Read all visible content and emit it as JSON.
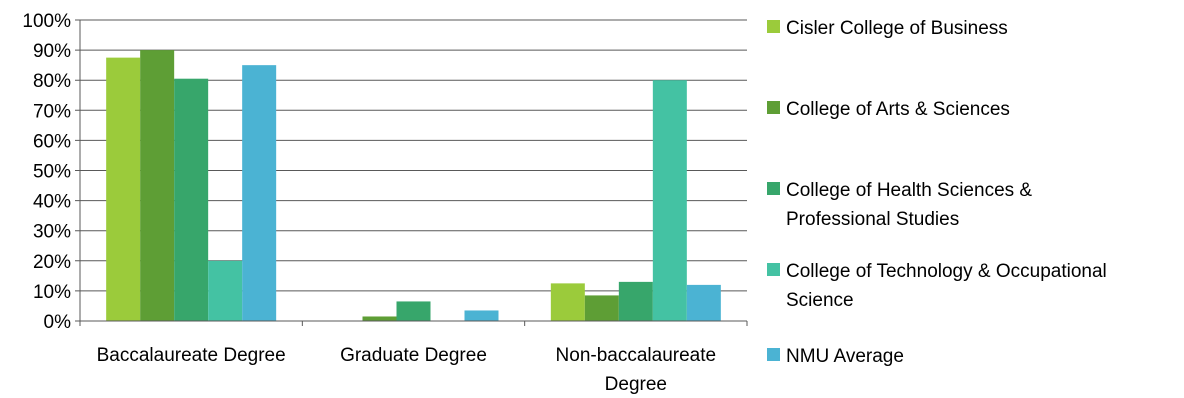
{
  "chart_data": {
    "type": "bar",
    "categories": [
      "Baccalaureate Degree",
      "Graduate Degree",
      "Non-baccalaureate Degree"
    ],
    "category_lines": [
      [
        "Baccalaureate Degree"
      ],
      [
        "Graduate Degree"
      ],
      [
        "Non-baccalaureate",
        "Degree"
      ]
    ],
    "series": [
      {
        "name": "Cisler College of Business",
        "name_lines": [
          "Cisler College of Business"
        ],
        "color": "#9BCB3B",
        "values": [
          87.5,
          0,
          12.5
        ]
      },
      {
        "name": "College of Arts & Sciences",
        "name_lines": [
          "College of Arts & Sciences"
        ],
        "color": "#5E9E35",
        "values": [
          90,
          1.5,
          8.5
        ]
      },
      {
        "name": "College of Health Sciences & Professional Studies",
        "name_lines": [
          "College of Health Sciences &",
          "Professional Studies"
        ],
        "color": "#37A66B",
        "values": [
          80.5,
          6.5,
          13
        ]
      },
      {
        "name": "College of Technology & Occupational Science",
        "name_lines": [
          "College of Technology & Occupational",
          "Science"
        ],
        "color": "#44C2A3",
        "values": [
          20,
          0,
          80
        ]
      },
      {
        "name": "NMU Average",
        "name_lines": [
          "NMU Average"
        ],
        "color": "#4BB3D3",
        "values": [
          85,
          3.5,
          12
        ]
      }
    ],
    "y_ticks": [
      "0%",
      "10%",
      "20%",
      "30%",
      "40%",
      "50%",
      "60%",
      "70%",
      "80%",
      "90%",
      "100%"
    ],
    "ylim": [
      0,
      100
    ],
    "y_unit": "%",
    "grid": true,
    "legend_position": "right"
  }
}
